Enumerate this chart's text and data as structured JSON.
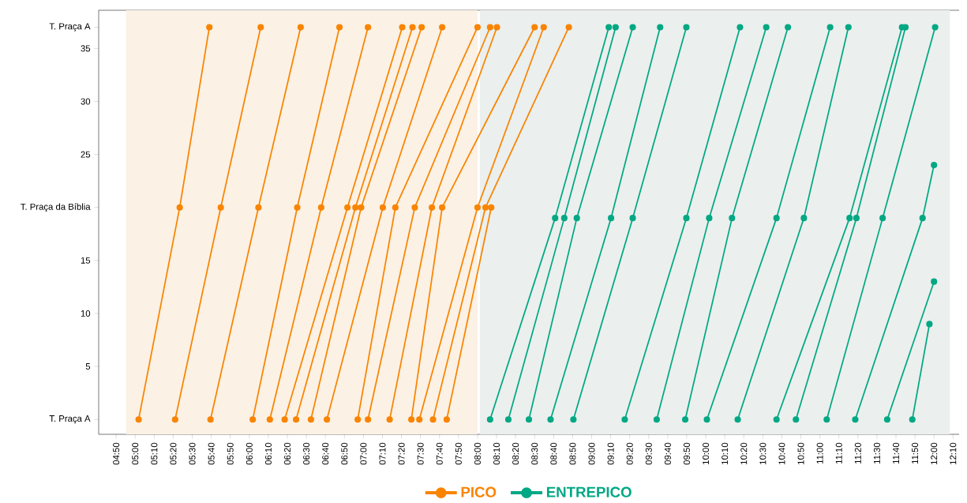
{
  "chart_data": {
    "type": "line",
    "marker": "circle",
    "line_style": "solid",
    "legend": "bottom",
    "xlim": [
      4.68,
      12.22
    ],
    "ylim": [
      -1.4,
      38.6
    ],
    "xticks": [
      {
        "value": 4.8333,
        "label": "04:50"
      },
      {
        "value": 5,
        "label": "05:00"
      },
      {
        "value": 5.1667,
        "label": "05:10"
      },
      {
        "value": 5.3333,
        "label": "05:20"
      },
      {
        "value": 5.5,
        "label": "05:30"
      },
      {
        "value": 5.6667,
        "label": "05:40"
      },
      {
        "value": 5.8333,
        "label": "05:50"
      },
      {
        "value": 6,
        "label": "06:00"
      },
      {
        "value": 6.1667,
        "label": "06:10"
      },
      {
        "value": 6.3333,
        "label": "06:20"
      },
      {
        "value": 6.5,
        "label": "06:30"
      },
      {
        "value": 6.6667,
        "label": "06:40"
      },
      {
        "value": 6.8333,
        "label": "06:50"
      },
      {
        "value": 7,
        "label": "07:00"
      },
      {
        "value": 7.1667,
        "label": "07:10"
      },
      {
        "value": 7.3333,
        "label": "07:20"
      },
      {
        "value": 7.5,
        "label": "07:30"
      },
      {
        "value": 7.6667,
        "label": "07:40"
      },
      {
        "value": 7.8333,
        "label": "07:50"
      },
      {
        "value": 8,
        "label": "08:00"
      },
      {
        "value": 8.1667,
        "label": "08:10"
      },
      {
        "value": 8.3333,
        "label": "08:20"
      },
      {
        "value": 8.5,
        "label": "08:30"
      },
      {
        "value": 8.6667,
        "label": "08:40"
      },
      {
        "value": 8.8333,
        "label": "08:50"
      },
      {
        "value": 9,
        "label": "09:00"
      },
      {
        "value": 9.1667,
        "label": "09:10"
      },
      {
        "value": 9.3333,
        "label": "09:20"
      },
      {
        "value": 9.5,
        "label": "09:30"
      },
      {
        "value": 9.6667,
        "label": "09:40"
      },
      {
        "value": 9.8333,
        "label": "09:50"
      },
      {
        "value": 10,
        "label": "10:00"
      },
      {
        "value": 10.1667,
        "label": "10:10"
      },
      {
        "value": 10.3333,
        "label": "10:20"
      },
      {
        "value": 10.5,
        "label": "10:30"
      },
      {
        "value": 10.6667,
        "label": "10:40"
      },
      {
        "value": 10.8333,
        "label": "10:50"
      },
      {
        "value": 11,
        "label": "11:00"
      },
      {
        "value": 11.1667,
        "label": "11:10"
      },
      {
        "value": 11.3333,
        "label": "11:20"
      },
      {
        "value": 11.5,
        "label": "11:30"
      },
      {
        "value": 11.6667,
        "label": "11:40"
      },
      {
        "value": 11.8333,
        "label": "11:50"
      },
      {
        "value": 12,
        "label": "12:00"
      },
      {
        "value": 12.1667,
        "label": "12:10"
      }
    ],
    "yticks": [
      {
        "value": 0,
        "label": "T. Praça A"
      },
      5,
      10,
      15,
      {
        "value": 20,
        "label": "T. Praça da Bíblia"
      },
      25,
      30,
      35,
      {
        "value": 37,
        "label": "T. Praça A"
      }
    ],
    "bands": [
      {
        "axis": "x",
        "from": 4.92,
        "to": 8.0,
        "color": "#fbf1e4"
      },
      {
        "axis": "x",
        "from": 8.02,
        "to": 12.14,
        "color": "#ebefed"
      }
    ],
    "series": [
      {
        "name": "PICO",
        "color": "#f98400",
        "x": [
          5.03,
          5.39,
          5.65
        ],
        "values": [
          0,
          20,
          37
        ]
      },
      {
        "color": "#f98400",
        "x": [
          5.35,
          5.75,
          6.1
        ],
        "values": [
          0,
          20,
          37
        ]
      },
      {
        "color": "#f98400",
        "x": [
          5.66,
          6.08,
          6.45
        ],
        "values": [
          0,
          20,
          37
        ]
      },
      {
        "color": "#f98400",
        "x": [
          6.03,
          6.42,
          6.79
        ],
        "values": [
          0,
          20,
          37
        ]
      },
      {
        "color": "#f98400",
        "x": [
          6.18,
          6.63,
          7.04
        ],
        "values": [
          0,
          20,
          37
        ]
      },
      {
        "color": "#f98400",
        "x": [
          6.31,
          6.86,
          7.34
        ],
        "values": [
          0,
          20,
          37
        ]
      },
      {
        "color": "#f98400",
        "x": [
          6.41,
          6.93,
          7.43
        ],
        "values": [
          0,
          20,
          37
        ]
      },
      {
        "color": "#f98400",
        "x": [
          6.54,
          6.98,
          7.51
        ],
        "values": [
          0,
          20,
          37
        ]
      },
      {
        "color": "#f98400",
        "x": [
          6.68,
          7.17,
          7.69
        ],
        "values": [
          0,
          20,
          37
        ]
      },
      {
        "color": "#f98400",
        "x": [
          6.95,
          7.28,
          8.0
        ],
        "values": [
          0,
          20,
          37
        ]
      },
      {
        "color": "#f98400",
        "x": [
          7.04,
          7.45,
          8.11
        ],
        "values": [
          0,
          20,
          37
        ]
      },
      {
        "color": "#f98400",
        "x": [
          7.23,
          7.6,
          8.17
        ],
        "values": [
          0,
          20,
          37
        ]
      },
      {
        "color": "#f98400",
        "x": [
          7.42,
          7.69,
          8.5
        ],
        "values": [
          0,
          20,
          37
        ]
      },
      {
        "color": "#f98400",
        "x": [
          7.49,
          8.0,
          8.58
        ],
        "values": [
          0,
          20,
          37
        ]
      },
      {
        "color": "#f98400",
        "x": [
          7.61,
          8.07,
          8.8
        ],
        "values": [
          0,
          20,
          37
        ]
      },
      {
        "color": "#f98400",
        "x": [
          7.73,
          8.12
        ],
        "values": [
          0,
          20
        ]
      },
      {
        "name": "ENTREPICO",
        "color": "#00a884",
        "x": [
          8.11,
          8.68,
          9.15
        ],
        "values": [
          0,
          19,
          37
        ]
      },
      {
        "color": "#00a884",
        "x": [
          8.27,
          8.76,
          9.21
        ],
        "values": [
          0,
          19,
          37
        ]
      },
      {
        "color": "#00a884",
        "x": [
          8.45,
          8.87,
          9.36
        ],
        "values": [
          0,
          19,
          37
        ]
      },
      {
        "color": "#00a884",
        "x": [
          8.64,
          9.17,
          9.6
        ],
        "values": [
          0,
          19,
          37
        ]
      },
      {
        "color": "#00a884",
        "x": [
          8.84,
          9.36,
          9.83
        ],
        "values": [
          0,
          19,
          37
        ]
      },
      {
        "color": "#00a884",
        "x": [
          9.29,
          9.83,
          10.3
        ],
        "values": [
          0,
          19,
          37
        ]
      },
      {
        "color": "#00a884",
        "x": [
          9.57,
          10.03,
          10.53
        ],
        "values": [
          0,
          19,
          37
        ]
      },
      {
        "color": "#00a884",
        "x": [
          9.82,
          10.23,
          10.72
        ],
        "values": [
          0,
          19,
          37
        ]
      },
      {
        "color": "#00a884",
        "x": [
          10.01,
          10.62,
          11.09
        ],
        "values": [
          0,
          19,
          37
        ]
      },
      {
        "color": "#00a884",
        "x": [
          10.28,
          10.86,
          11.25
        ],
        "values": [
          0,
          19,
          37
        ]
      },
      {
        "color": "#00a884",
        "x": [
          10.62,
          11.26,
          11.72
        ],
        "values": [
          0,
          19,
          37
        ]
      },
      {
        "color": "#00a884",
        "x": [
          10.79,
          11.32,
          11.75
        ],
        "values": [
          0,
          19,
          37
        ]
      },
      {
        "color": "#00a884",
        "x": [
          11.06,
          11.55,
          12.01
        ],
        "values": [
          0,
          19,
          37
        ]
      },
      {
        "color": "#00a884",
        "x": [
          11.31,
          11.9,
          12.0
        ],
        "values": [
          0,
          19,
          24
        ]
      },
      {
        "color": "#00a884",
        "x": [
          11.59,
          12.0
        ],
        "values": [
          0,
          13
        ]
      },
      {
        "color": "#00a884",
        "x": [
          11.81,
          11.96
        ],
        "values": [
          0,
          9
        ]
      }
    ]
  }
}
